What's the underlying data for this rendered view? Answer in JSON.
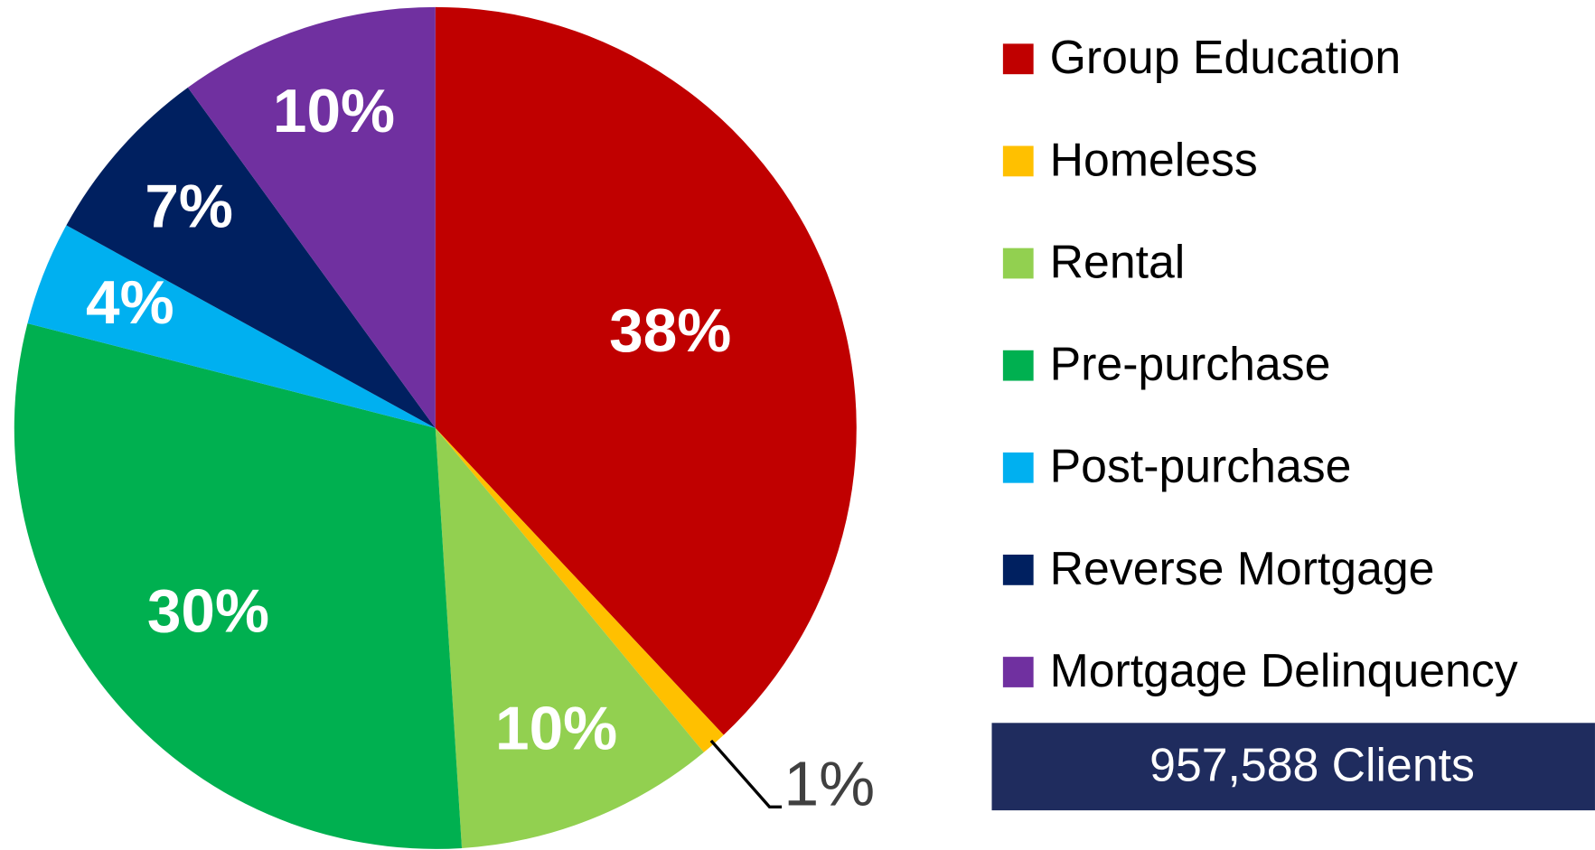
{
  "chart_data": {
    "type": "pie",
    "categories": [
      "Group Education",
      "Homeless",
      "Rental",
      "Pre-purchase",
      "Post-purchase",
      "Reverse Mortgage",
      "Mortgage Delinquency"
    ],
    "values": [
      38,
      1,
      10,
      30,
      4,
      7,
      10
    ],
    "value_labels": [
      "38%",
      "1%",
      "10%",
      "30%",
      "4%",
      "7%",
      "10%"
    ],
    "colors": [
      "#C00000",
      "#FFC000",
      "#92D050",
      "#00B050",
      "#00B0F0",
      "#002060",
      "#7030A0"
    ],
    "legend": "right",
    "annotation": "957,588 Clients"
  }
}
